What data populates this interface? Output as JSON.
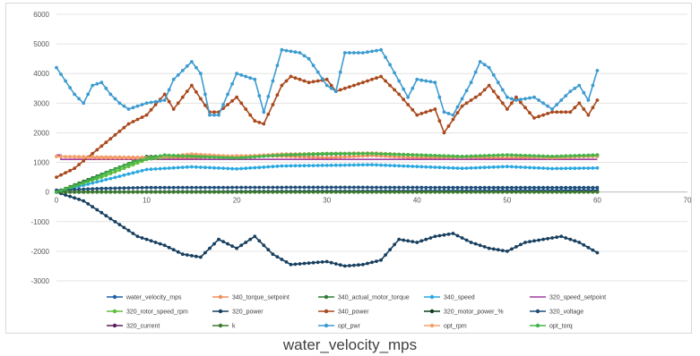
{
  "chart_data": {
    "type": "line",
    "xlim": [
      0,
      70
    ],
    "ylim": [
      -3000,
      6000
    ],
    "x_ticks": [
      "0",
      "10",
      "20",
      "30",
      "40",
      "50",
      "60",
      "70"
    ],
    "y_ticks": [
      "-3000",
      "-2000",
      "-1000",
      "0",
      "1000",
      "2000",
      "3000",
      "4000",
      "5000",
      "6000"
    ],
    "xlabel": "water_velocity_mps",
    "grid": "horizontal",
    "legend_position": "bottom",
    "series": [
      {
        "name": "water_velocity_mps",
        "color": "#1f5fa8",
        "marker": true,
        "points": [
          [
            0,
            0
          ],
          [
            60,
            60
          ]
        ]
      },
      {
        "name": "340_torque_setpoint",
        "color": "#f28e5b",
        "marker": true,
        "points": [
          [
            0,
            1200
          ],
          [
            5,
            1180
          ],
          [
            10,
            1170
          ],
          [
            15,
            1150
          ],
          [
            20,
            1220
          ],
          [
            25,
            1210
          ],
          [
            30,
            1160
          ],
          [
            35,
            1230
          ],
          [
            40,
            1160
          ],
          [
            45,
            1170
          ],
          [
            50,
            1150
          ],
          [
            55,
            1180
          ],
          [
            60,
            1200
          ]
        ]
      },
      {
        "name": "340_actual_motor_torque",
        "color": "#2e7d32",
        "marker": true,
        "points": [
          [
            0,
            0
          ],
          [
            5,
            600
          ],
          [
            10,
            1200
          ],
          [
            15,
            1220
          ],
          [
            20,
            1150
          ],
          [
            25,
            1250
          ],
          [
            30,
            1280
          ],
          [
            35,
            1300
          ],
          [
            40,
            1250
          ],
          [
            45,
            1200
          ],
          [
            50,
            1250
          ],
          [
            55,
            1200
          ],
          [
            60,
            1250
          ]
        ]
      },
      {
        "name": "340_speed",
        "color": "#2aa8e0",
        "marker": true,
        "points": [
          [
            0,
            0
          ],
          [
            5,
            380
          ],
          [
            10,
            760
          ],
          [
            15,
            850
          ],
          [
            20,
            780
          ],
          [
            25,
            880
          ],
          [
            30,
            900
          ],
          [
            35,
            920
          ],
          [
            40,
            860
          ],
          [
            45,
            800
          ],
          [
            50,
            860
          ],
          [
            55,
            790
          ],
          [
            60,
            810
          ]
        ]
      },
      {
        "name": "320_speed_setpoint",
        "color": "#a23ca0",
        "marker": false,
        "points": [
          [
            0,
            1250
          ],
          [
            0.5,
            1250
          ],
          [
            0.5,
            1100
          ],
          [
            10,
            1100
          ],
          [
            60,
            1100
          ]
        ]
      },
      {
        "name": "320_rotor_speed_rpm",
        "color": "#5fbf3a",
        "marker": true,
        "points": [
          [
            0,
            0
          ],
          [
            5,
            500
          ],
          [
            10,
            1100
          ],
          [
            15,
            1280
          ],
          [
            20,
            1150
          ],
          [
            25,
            1260
          ],
          [
            30,
            1300
          ],
          [
            35,
            1300
          ],
          [
            40,
            1240
          ],
          [
            45,
            1180
          ],
          [
            50,
            1250
          ],
          [
            55,
            1150
          ],
          [
            60,
            1220
          ]
        ]
      },
      {
        "name": "320_power",
        "color": "#173f5f",
        "marker": true,
        "points": [
          [
            0,
            0
          ],
          [
            3,
            -300
          ],
          [
            6,
            -900
          ],
          [
            9,
            -1500
          ],
          [
            12,
            -1800
          ],
          [
            14,
            -2100
          ],
          [
            16,
            -2200
          ],
          [
            18,
            -1600
          ],
          [
            20,
            -1900
          ],
          [
            22,
            -1500
          ],
          [
            24,
            -2100
          ],
          [
            26,
            -2450
          ],
          [
            28,
            -2400
          ],
          [
            30,
            -2350
          ],
          [
            32,
            -2500
          ],
          [
            34,
            -2450
          ],
          [
            36,
            -2300
          ],
          [
            38,
            -1600
          ],
          [
            40,
            -1700
          ],
          [
            42,
            -1500
          ],
          [
            44,
            -1400
          ],
          [
            46,
            -1700
          ],
          [
            48,
            -1900
          ],
          [
            50,
            -2000
          ],
          [
            52,
            -1700
          ],
          [
            54,
            -1600
          ],
          [
            56,
            -1500
          ],
          [
            58,
            -1700
          ],
          [
            60,
            -2050
          ]
        ]
      },
      {
        "name": "340_power",
        "color": "#a9481c",
        "marker": true,
        "points": [
          [
            0,
            500
          ],
          [
            2,
            800
          ],
          [
            4,
            1300
          ],
          [
            6,
            1800
          ],
          [
            8,
            2300
          ],
          [
            10,
            2600
          ],
          [
            12,
            3300
          ],
          [
            13,
            2800
          ],
          [
            15,
            3600
          ],
          [
            17,
            2700
          ],
          [
            18,
            2700
          ],
          [
            20,
            3200
          ],
          [
            22,
            2400
          ],
          [
            23,
            2300
          ],
          [
            25,
            3600
          ],
          [
            26,
            3900
          ],
          [
            28,
            3700
          ],
          [
            30,
            3800
          ],
          [
            31,
            3400
          ],
          [
            33,
            3600
          ],
          [
            35,
            3800
          ],
          [
            36,
            3900
          ],
          [
            38,
            3300
          ],
          [
            40,
            2600
          ],
          [
            42,
            2800
          ],
          [
            43,
            2000
          ],
          [
            45,
            2900
          ],
          [
            47,
            3300
          ],
          [
            48,
            3600
          ],
          [
            50,
            2800
          ],
          [
            51,
            3200
          ],
          [
            53,
            2500
          ],
          [
            55,
            2700
          ],
          [
            57,
            2700
          ],
          [
            58,
            3000
          ],
          [
            59,
            2600
          ],
          [
            60,
            3100
          ]
        ]
      },
      {
        "name": "320_motor_power_%",
        "color": "#0b3d20",
        "marker": true,
        "points": [
          [
            0,
            0
          ],
          [
            60,
            10
          ]
        ]
      },
      {
        "name": "320_voltage",
        "color": "#1f4e79",
        "marker": true,
        "points": [
          [
            0,
            60
          ],
          [
            5,
            120
          ],
          [
            10,
            150
          ],
          [
            20,
            155
          ],
          [
            30,
            160
          ],
          [
            40,
            155
          ],
          [
            50,
            150
          ],
          [
            60,
            150
          ]
        ]
      },
      {
        "name": "320_current",
        "color": "#5b1e60",
        "marker": true,
        "points": [
          [
            0,
            0
          ],
          [
            60,
            10
          ]
        ]
      },
      {
        "name": "k",
        "color": "#3a7a2a",
        "marker": true,
        "points": [
          [
            0,
            0
          ],
          [
            60,
            0
          ]
        ]
      },
      {
        "name": "opt_pwr",
        "color": "#3d9bd0",
        "marker": true,
        "points": [
          [
            0,
            4200
          ],
          [
            2,
            3300
          ],
          [
            3,
            3000
          ],
          [
            4,
            3600
          ],
          [
            5,
            3700
          ],
          [
            6,
            3300
          ],
          [
            7,
            3000
          ],
          [
            8,
            2800
          ],
          [
            10,
            3000
          ],
          [
            12,
            3100
          ],
          [
            13,
            3800
          ],
          [
            15,
            4400
          ],
          [
            16,
            4000
          ],
          [
            17,
            2600
          ],
          [
            18,
            2600
          ],
          [
            20,
            4000
          ],
          [
            22,
            3800
          ],
          [
            23,
            2700
          ],
          [
            25,
            4800
          ],
          [
            27,
            4700
          ],
          [
            28,
            4500
          ],
          [
            30,
            3600
          ],
          [
            31,
            3400
          ],
          [
            32,
            4700
          ],
          [
            34,
            4700
          ],
          [
            36,
            4800
          ],
          [
            37,
            4300
          ],
          [
            39,
            3200
          ],
          [
            40,
            3800
          ],
          [
            42,
            3700
          ],
          [
            43,
            2700
          ],
          [
            44,
            2600
          ],
          [
            46,
            3700
          ],
          [
            47,
            4400
          ],
          [
            48,
            4200
          ],
          [
            50,
            3200
          ],
          [
            51,
            3100
          ],
          [
            53,
            3200
          ],
          [
            55,
            2800
          ],
          [
            57,
            3400
          ],
          [
            58,
            3600
          ],
          [
            59,
            3100
          ],
          [
            60,
            4100
          ]
        ]
      },
      {
        "name": "opt_rpm",
        "color": "#f4a06a",
        "marker": true,
        "points": [
          [
            0,
            1200
          ],
          [
            5,
            1150
          ],
          [
            10,
            1150
          ],
          [
            15,
            1280
          ],
          [
            20,
            1200
          ],
          [
            25,
            1280
          ],
          [
            30,
            1300
          ],
          [
            35,
            1320
          ],
          [
            40,
            1250
          ],
          [
            45,
            1180
          ],
          [
            50,
            1250
          ],
          [
            55,
            1150
          ],
          [
            60,
            1230
          ]
        ]
      },
      {
        "name": "opt_torq",
        "color": "#45b549",
        "marker": true,
        "points": [
          [
            0,
            0
          ],
          [
            3,
            300
          ],
          [
            6,
            700
          ],
          [
            9,
            1050
          ],
          [
            12,
            1250
          ],
          [
            15,
            1200
          ],
          [
            20,
            1150
          ],
          [
            25,
            1250
          ],
          [
            30,
            1300
          ],
          [
            35,
            1300
          ],
          [
            40,
            1250
          ],
          [
            45,
            1200
          ],
          [
            50,
            1250
          ],
          [
            55,
            1200
          ],
          [
            60,
            1250
          ]
        ]
      }
    ]
  }
}
